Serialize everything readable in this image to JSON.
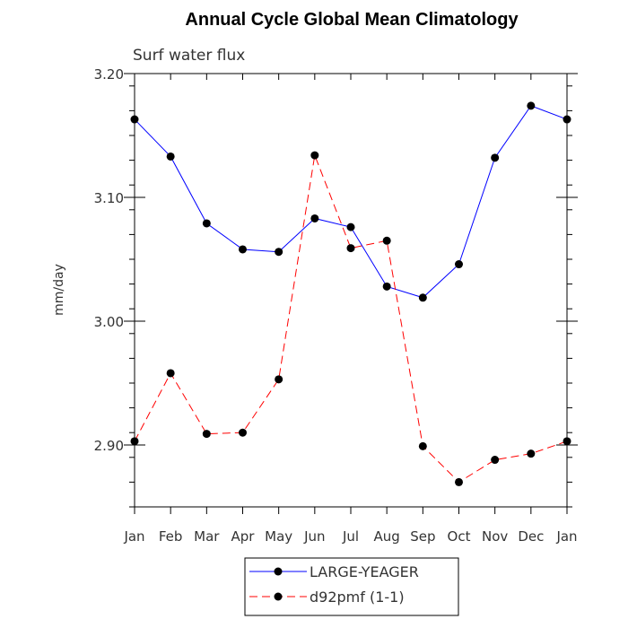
{
  "chart_data": {
    "type": "line",
    "title": "Annual Cycle Global Mean Climatology",
    "subtitle": "Surf water flux",
    "xlabel": "",
    "ylabel": "mm/day",
    "categories": [
      "Jan",
      "Feb",
      "Mar",
      "Apr",
      "May",
      "Jun",
      "Jul",
      "Aug",
      "Sep",
      "Oct",
      "Nov",
      "Dec",
      "Jan"
    ],
    "ylim": [
      2.85,
      3.2
    ],
    "yticks": [
      2.9,
      3.0,
      3.1,
      3.2
    ],
    "ytick_labels": [
      "2.90",
      "3.00",
      "3.10",
      "3.20"
    ],
    "grid": false,
    "legend_position": "bottom-center",
    "series": [
      {
        "name": "LARGE-YEAGER",
        "color": "#0000ff",
        "style": "solid",
        "values": [
          3.163,
          3.133,
          3.079,
          3.058,
          3.056,
          3.083,
          3.076,
          3.028,
          3.019,
          3.046,
          3.132,
          3.174,
          3.163
        ]
      },
      {
        "name": "d92pmf (1-1)",
        "color": "#ff0000",
        "style": "dashed",
        "values": [
          2.903,
          2.958,
          2.909,
          2.91,
          2.953,
          3.134,
          3.059,
          3.065,
          2.899,
          2.87,
          2.888,
          2.893,
          2.903
        ]
      }
    ]
  }
}
